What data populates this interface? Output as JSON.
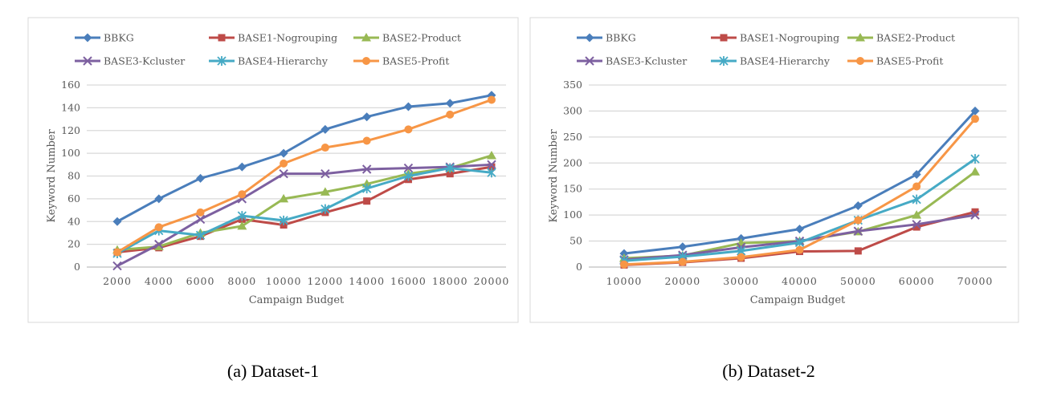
{
  "chart_data": [
    {
      "type": "line",
      "caption": "(a) Dataset-1",
      "xlabel": "Campaign Budget",
      "ylabel": "Keyword Number",
      "categories": [
        "2000",
        "4000",
        "6000",
        "8000",
        "10000",
        "12000",
        "14000",
        "16000",
        "18000",
        "20000"
      ],
      "ylim": [
        0,
        160
      ],
      "yticks": [
        "0",
        "20",
        "40",
        "60",
        "80",
        "100",
        "120",
        "140",
        "160"
      ],
      "grid": true,
      "legend_placement": "top",
      "series": [
        {
          "name": "BBKG",
          "color": "#4a7ebb",
          "marker": "diamond",
          "values": [
            40,
            60,
            78,
            88,
            100,
            121,
            132,
            141,
            144,
            151
          ]
        },
        {
          "name": "BASE1-Nogrouping",
          "color": "#be4b48",
          "marker": "square",
          "values": [
            13,
            17,
            27,
            42,
            37,
            48,
            58,
            77,
            82,
            88
          ]
        },
        {
          "name": "BASE2-Product",
          "color": "#98b954",
          "marker": "triangle",
          "values": [
            15,
            18,
            30,
            36,
            60,
            66,
            73,
            82,
            87,
            98
          ]
        },
        {
          "name": "BASE3-Kcluster",
          "color": "#7d60a0",
          "marker": "x",
          "values": [
            1,
            20,
            42,
            60,
            82,
            82,
            86,
            87,
            88,
            90
          ]
        },
        {
          "name": "BASE4-Hierarchy",
          "color": "#46aac5",
          "marker": "star",
          "values": [
            12,
            32,
            28,
            45,
            41,
            51,
            69,
            80,
            87,
            83
          ]
        },
        {
          "name": "BASE5-Profit",
          "color": "#f79646",
          "marker": "circle",
          "values": [
            13,
            35,
            48,
            64,
            91,
            105,
            111,
            121,
            134,
            147
          ]
        }
      ]
    },
    {
      "type": "line",
      "caption": "(b) Dataset-2",
      "xlabel": "Campaign Budget",
      "ylabel": "Keyword Number",
      "categories": [
        "10000",
        "20000",
        "30000",
        "40000",
        "50000",
        "60000",
        "70000"
      ],
      "ylim": [
        0,
        350
      ],
      "yticks": [
        "0",
        "50",
        "100",
        "150",
        "200",
        "250",
        "300",
        "350"
      ],
      "grid": true,
      "legend_placement": "top",
      "series": [
        {
          "name": "BBKG",
          "color": "#4a7ebb",
          "marker": "diamond",
          "values": [
            26,
            39,
            55,
            73,
            118,
            178,
            300
          ]
        },
        {
          "name": "BASE1-Nogrouping",
          "color": "#be4b48",
          "marker": "square",
          "values": [
            4,
            9,
            17,
            30,
            31,
            77,
            106
          ]
        },
        {
          "name": "BASE2-Product",
          "color": "#98b954",
          "marker": "triangle",
          "values": [
            17,
            22,
            46,
            50,
            68,
            100,
            183
          ]
        },
        {
          "name": "BASE3-Kcluster",
          "color": "#7d60a0",
          "marker": "x",
          "values": [
            14,
            23,
            38,
            50,
            69,
            82,
            100
          ]
        },
        {
          "name": "BASE4-Hierarchy",
          "color": "#46aac5",
          "marker": "star",
          "values": [
            12,
            20,
            31,
            47,
            90,
            130,
            208
          ]
        },
        {
          "name": "BASE5-Profit",
          "color": "#f79646",
          "marker": "circle",
          "values": [
            5,
            10,
            19,
            33,
            90,
            155,
            285
          ]
        }
      ]
    }
  ]
}
